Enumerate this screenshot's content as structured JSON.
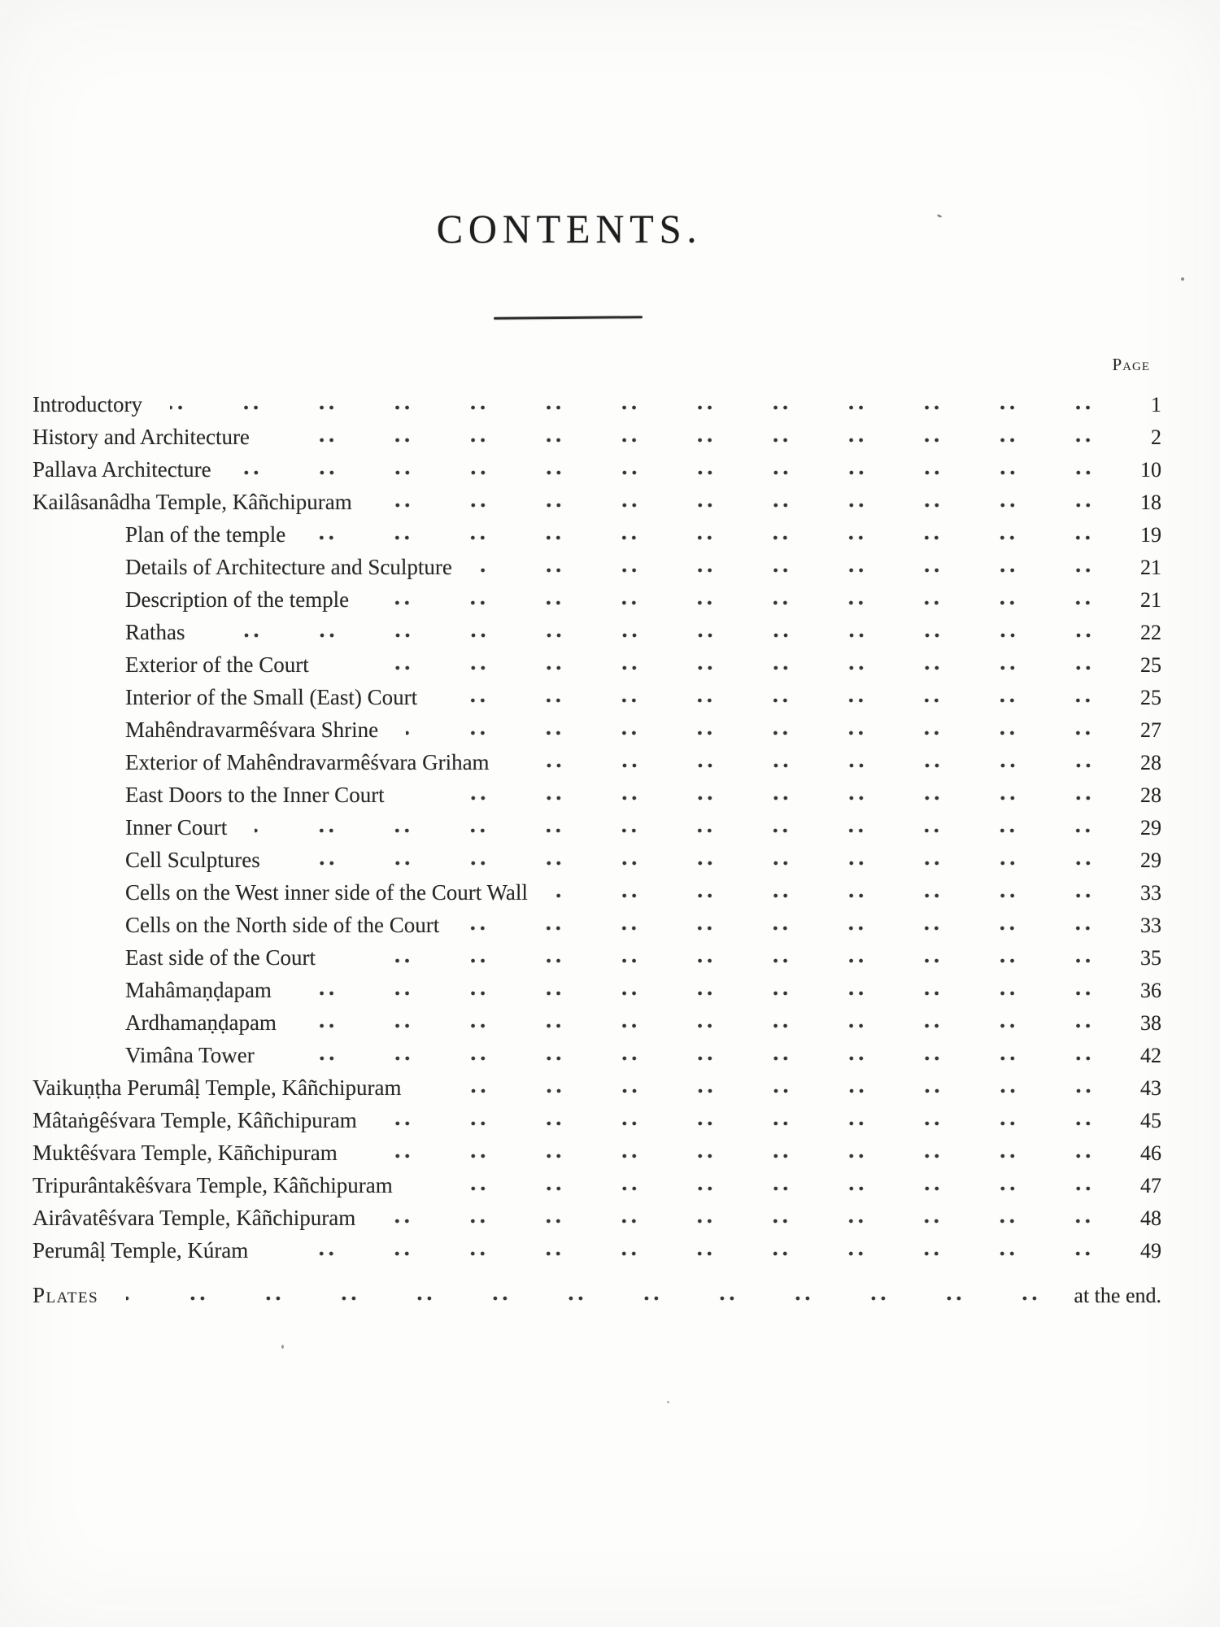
{
  "document": {
    "title": "CONTENTS.",
    "page_column_header": "Page",
    "entries": [
      {
        "label": "Introductory",
        "page": "1",
        "indent": 0
      },
      {
        "label": "History and Architecture",
        "page": "2",
        "indent": 0
      },
      {
        "label": "Pallava Architecture",
        "page": "10",
        "indent": 0
      },
      {
        "label": "Kailâsanâdha Temple, Kâñchipuram",
        "page": "18",
        "indent": 0
      },
      {
        "label": "Plan of the temple",
        "page": "19",
        "indent": 1
      },
      {
        "label": "Details of Architecture and Sculpture",
        "page": "21",
        "indent": 1
      },
      {
        "label": "Description of the temple",
        "page": "21",
        "indent": 1
      },
      {
        "label": "Rathas",
        "page": "22",
        "indent": 1
      },
      {
        "label": "Exterior of the Court",
        "page": "25",
        "indent": 1
      },
      {
        "label": "Interior of the Small (East) Court",
        "page": "25",
        "indent": 1
      },
      {
        "label": "Mahêndravarmêśvara Shrine",
        "page": "27",
        "indent": 1
      },
      {
        "label": "Exterior of Mahêndravarmêśvara Griham",
        "page": "28",
        "indent": 1
      },
      {
        "label": "East Doors to the Inner Court",
        "page": "28",
        "indent": 1
      },
      {
        "label": "Inner Court",
        "page": "29",
        "indent": 1
      },
      {
        "label": "Cell Sculptures",
        "page": "29",
        "indent": 1
      },
      {
        "label": "Cells on the West inner side of the Court Wall",
        "page": "33",
        "indent": 1
      },
      {
        "label": "Cells on the North side of the Court",
        "page": "33",
        "indent": 1
      },
      {
        "label": "East side of the Court",
        "page": "35",
        "indent": 1
      },
      {
        "label": "Mahâmaṇḍapam",
        "page": "36",
        "indent": 1
      },
      {
        "label": "Ardhamaṇḍapam",
        "page": "38",
        "indent": 1
      },
      {
        "label": "Vimâna Tower",
        "page": "42",
        "indent": 1
      },
      {
        "label": "Vaikuṇṭha Perumâḷ Temple, Kâñchipuram",
        "page": "43",
        "indent": 0
      },
      {
        "label": "Mâtaṅgêśvara Temple, Kâñchipuram",
        "page": "45",
        "indent": 0
      },
      {
        "label": "Muktêśvara Temple, Kāñchipuram",
        "page": "46",
        "indent": 0
      },
      {
        "label": "Tripurântakêśvara Temple, Kâñchipuram",
        "page": "47",
        "indent": 0
      },
      {
        "label": "Airâvatêśvara Temple, Kâñchipuram",
        "page": "48",
        "indent": 0
      },
      {
        "label": "Perumâḷ Temple, Kúram",
        "page": "49",
        "indent": 0
      },
      {
        "label": "Plates",
        "page": "at the end.",
        "indent": 0,
        "small_caps": true,
        "extra_gap": true
      }
    ]
  }
}
